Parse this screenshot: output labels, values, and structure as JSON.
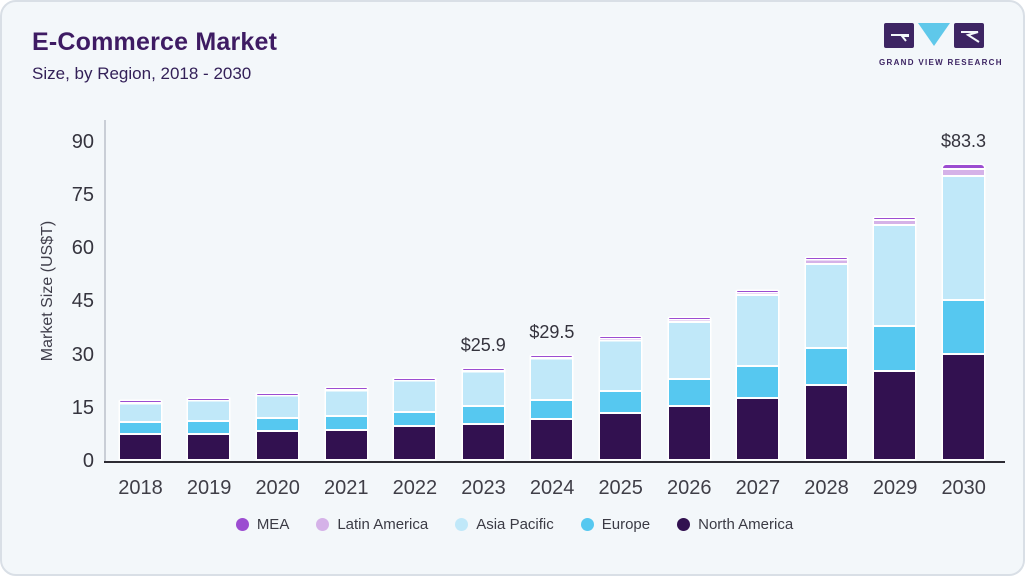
{
  "header": {
    "title": "E-Commerce Market",
    "subtitle": "Size, by Region, 2018 - 2030"
  },
  "logo": {
    "name": "GRAND VIEW RESEARCH",
    "square_color": "#3d2563",
    "triangle_color": "#5fc8ea"
  },
  "chart_data": {
    "type": "bar",
    "stacked": true,
    "title": "E-Commerce Market",
    "subtitle": "Size, by Region, 2018 - 2030",
    "ylabel": "Market Size (US$T)",
    "ylim": [
      0,
      90
    ],
    "yticks": [
      0,
      15,
      30,
      45,
      60,
      75,
      90
    ],
    "grid": false,
    "legend_position": "bottom",
    "categories": [
      "2018",
      "2019",
      "2020",
      "2021",
      "2022",
      "2023",
      "2024",
      "2025",
      "2026",
      "2027",
      "2028",
      "2029",
      "2030"
    ],
    "series": [
      {
        "name": "North America",
        "color": "#321150",
        "values": [
          7.4,
          7.4,
          8.1,
          8.5,
          9.5,
          10.1,
          11.6,
          13.3,
          15.3,
          17.6,
          21.2,
          25.0,
          29.8
        ]
      },
      {
        "name": "Europe",
        "color": "#56c8f0",
        "values": [
          3.2,
          3.6,
          3.7,
          4.0,
          4.0,
          5.2,
          5.4,
          6.1,
          7.4,
          9.0,
          10.4,
          12.7,
          15.4
        ]
      },
      {
        "name": "Asia Pacific",
        "color": "#c0e8f9",
        "values": [
          6.0,
          6.3,
          6.9,
          7.6,
          9.3,
          10.1,
          11.7,
          14.4,
          16.2,
          19.9,
          23.6,
          28.4,
          34.8
        ]
      },
      {
        "name": "Latin America",
        "color": "#d5b2e8",
        "values": [
          0.15,
          0.15,
          0.2,
          0.25,
          0.3,
          0.35,
          0.5,
          0.7,
          0.9,
          1.0,
          1.3,
          1.6,
          1.9
        ]
      },
      {
        "name": "MEA",
        "color": "#9c4dd1",
        "values": [
          0.05,
          0.05,
          0.1,
          0.1,
          0.1,
          0.15,
          0.3,
          0.3,
          0.4,
          0.5,
          0.6,
          0.8,
          1.4
        ]
      }
    ],
    "annotations": [
      {
        "category": "2023",
        "label": "$25.9"
      },
      {
        "category": "2024",
        "label": "$29.5"
      },
      {
        "category": "2030",
        "label": "$83.3"
      }
    ],
    "legend_order": [
      "MEA",
      "Latin America",
      "Asia Pacific",
      "Europe",
      "North America"
    ]
  }
}
